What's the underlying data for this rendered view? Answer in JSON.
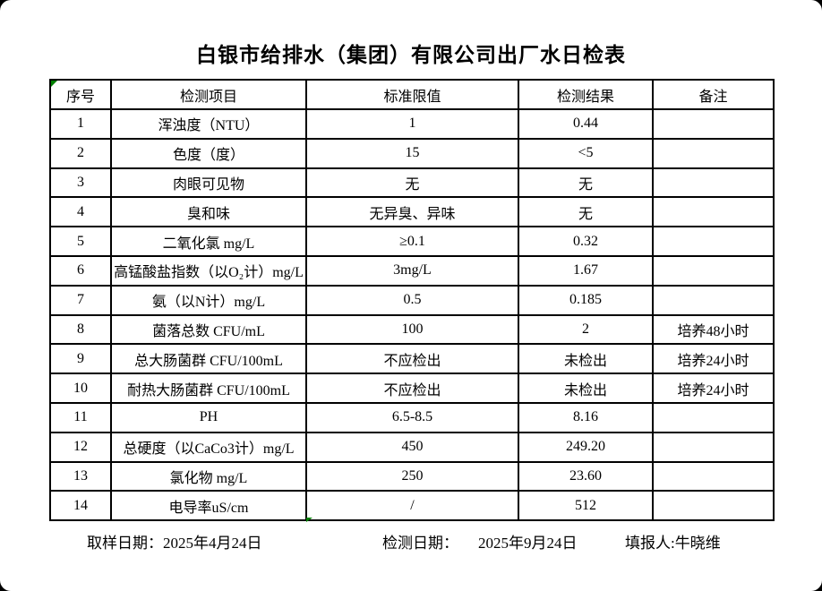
{
  "page": {
    "title": "白银市给排水（集团）有限公司出厂水日检表",
    "background_color": "#ffffff",
    "frame_color": "#000000",
    "flag_marker_color": "#008000"
  },
  "table": {
    "headers": [
      "序号",
      "检测项目",
      "标准限值",
      "检测结果",
      "备注"
    ],
    "rows": [
      {
        "no": "1",
        "item": "浑浊度（NTU）",
        "limit": "1",
        "result": "0.44",
        "note": ""
      },
      {
        "no": "2",
        "item": "色度（度）",
        "limit": "15",
        "result": "<5",
        "note": ""
      },
      {
        "no": "3",
        "item": "肉眼可见物",
        "limit": "无",
        "result": "无",
        "note": ""
      },
      {
        "no": "4",
        "item": "臭和味",
        "limit": "无异臭、异味",
        "result": "无",
        "note": ""
      },
      {
        "no": "5",
        "item": "二氧化氯 mg/L",
        "limit": "≥0.1",
        "result": "0.32",
        "note": ""
      },
      {
        "no": "6",
        "item": "高锰酸盐指数（以O₂计）mg/L",
        "limit": "3mg/L",
        "result": "1.67",
        "note": ""
      },
      {
        "no": "7",
        "item": "氨（以N计）mg/L",
        "limit": "0.5",
        "result": "0.185",
        "note": ""
      },
      {
        "no": "8",
        "item": "菌落总数 CFU/mL",
        "limit": "100",
        "result": "2",
        "note": "培养48小时"
      },
      {
        "no": "9",
        "item": "总大肠菌群 CFU/100mL",
        "limit": "不应检出",
        "result": "未检出",
        "note": "培养24小时"
      },
      {
        "no": "10",
        "item": "耐热大肠菌群 CFU/100mL",
        "limit": "不应检出",
        "result": "未检出",
        "note": "培养24小时"
      },
      {
        "no": "11",
        "item": "PH",
        "limit": "6.5-8.5",
        "result": "8.16",
        "note": ""
      },
      {
        "no": "12",
        "item": "总硬度（以CaCo3计）mg/L",
        "limit": "450",
        "result": "249.20",
        "note": ""
      },
      {
        "no": "13",
        "item": "氯化物 mg/L",
        "limit": "250",
        "result": "23.60",
        "note": ""
      },
      {
        "no": "14",
        "item": "电导率uS/cm",
        "limit": "/",
        "result": "512",
        "note": ""
      }
    ]
  },
  "footer": {
    "sampling_date_label": "取样日期：",
    "sampling_date_value": "2025年4月24日",
    "test_date_label": "检测日期：",
    "test_date_value": "2025年9月24日",
    "reporter_label": "填报人:",
    "reporter_value": "牛晓维"
  }
}
